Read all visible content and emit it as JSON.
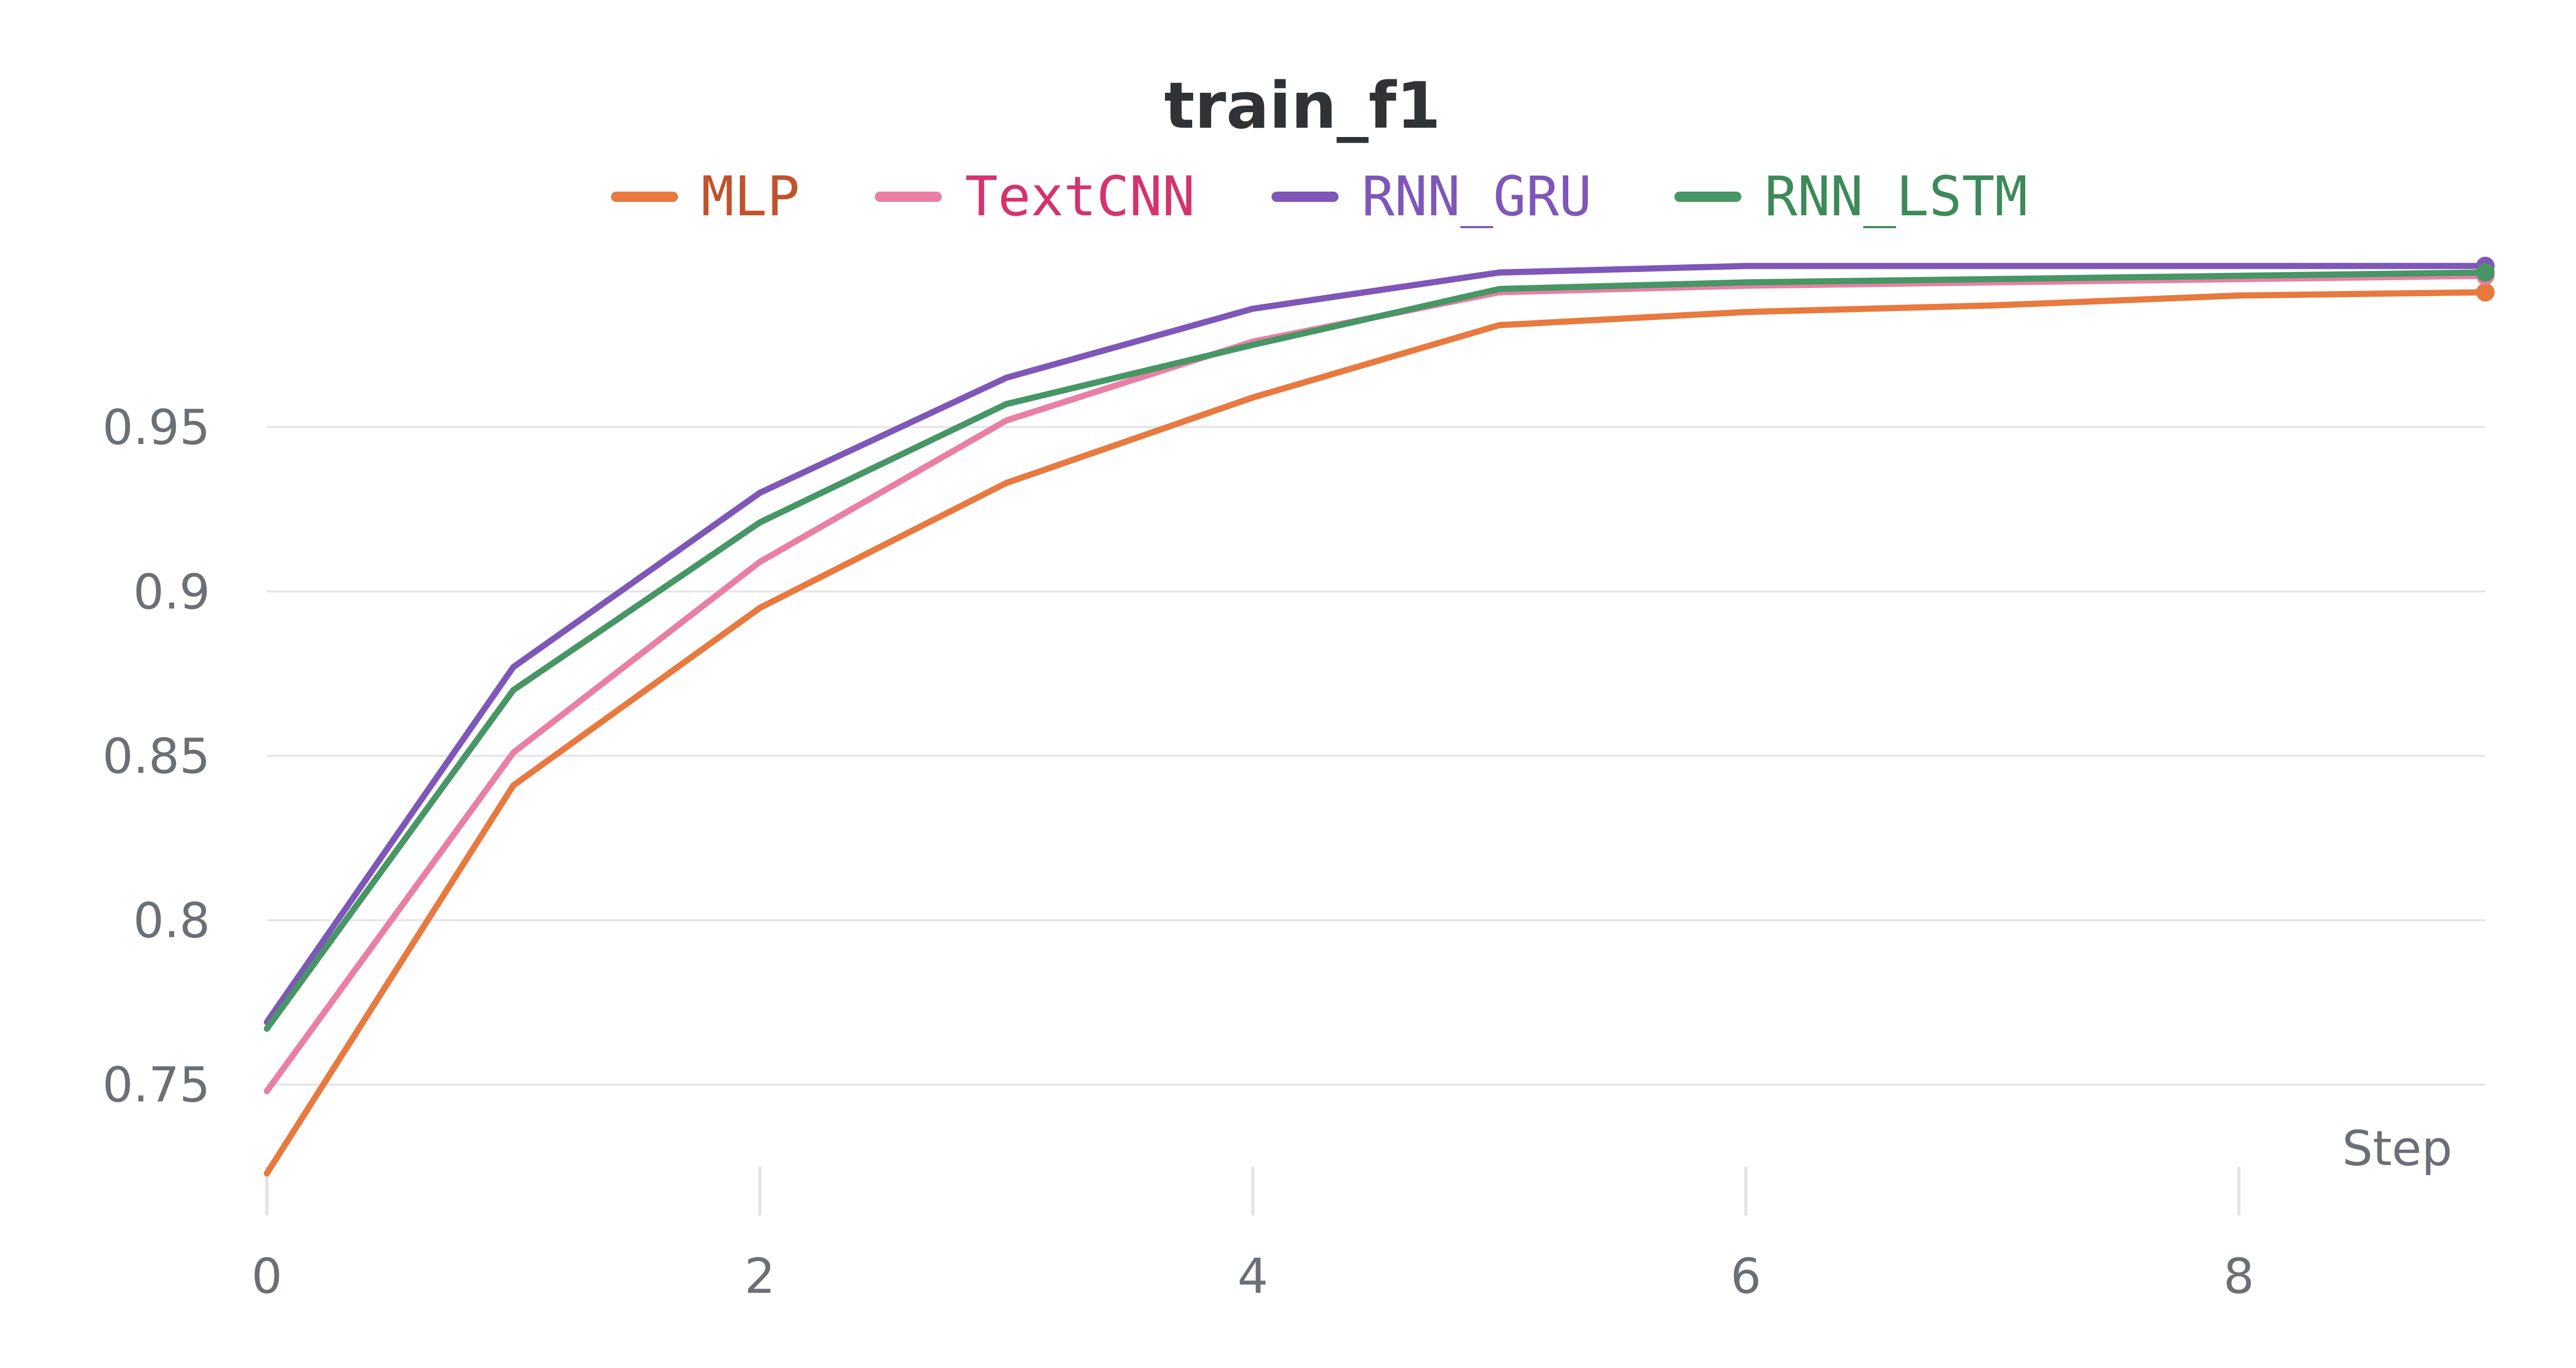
{
  "chart_data": {
    "type": "line",
    "title": "train_f1",
    "xlabel": "Step",
    "ylabel": "",
    "xlim": [
      0,
      9
    ],
    "ylim": [
      0.718,
      1.0
    ],
    "x_ticks": [
      0,
      2,
      4,
      6,
      8
    ],
    "y_ticks": [
      0.75,
      0.8,
      0.85,
      0.9,
      0.95
    ],
    "y_tick_labels": [
      "0.75",
      "0.8",
      "0.85",
      "0.9",
      "0.95"
    ],
    "x_tick_labels": [
      "0",
      "2",
      "4",
      "6",
      "8"
    ],
    "grid": true,
    "legend_position": "top-center",
    "x": [
      0,
      1,
      2,
      3,
      4,
      5,
      6,
      7,
      8,
      9
    ],
    "series": [
      {
        "name": "MLP",
        "color": "#e8793f",
        "text_color": "#c0532b",
        "values": [
          0.723,
          0.841,
          0.895,
          0.933,
          0.959,
          0.981,
          0.985,
          0.987,
          0.99,
          0.991
        ]
      },
      {
        "name": "TextCNN",
        "color": "#e97fa4",
        "text_color": "#d4336f",
        "values": [
          0.748,
          0.851,
          0.909,
          0.952,
          0.976,
          0.991,
          0.993,
          0.994,
          0.995,
          0.996
        ]
      },
      {
        "name": "RNN_GRU",
        "color": "#7e57b8",
        "text_color": "#7e57b8",
        "values": [
          0.769,
          0.877,
          0.93,
          0.965,
          0.986,
          0.997,
          0.999,
          0.999,
          0.999,
          0.999
        ]
      },
      {
        "name": "RNN_LSTM",
        "color": "#479665",
        "text_color": "#3d8a59",
        "values": [
          0.767,
          0.87,
          0.921,
          0.957,
          0.975,
          0.992,
          0.994,
          0.995,
          0.996,
          0.997
        ]
      }
    ]
  }
}
